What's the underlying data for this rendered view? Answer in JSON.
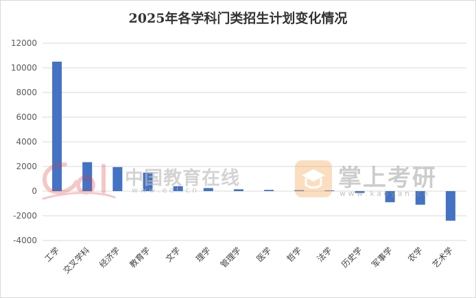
{
  "chart_data": {
    "type": "bar",
    "title": "2025年各学科门类招生计划变化情况",
    "categories": [
      "工学",
      "交叉学科",
      "经济学",
      "教育学",
      "文学",
      "理学",
      "管理学",
      "医学",
      "哲学",
      "法学",
      "历史学",
      "军事学",
      "农学",
      "艺术学"
    ],
    "values": [
      10500,
      2350,
      1950,
      1500,
      400,
      250,
      150,
      100,
      80,
      60,
      -150,
      -900,
      -1100,
      -2400
    ],
    "ylim": [
      -4000,
      12000
    ],
    "yticks": [
      -4000,
      -2000,
      0,
      2000,
      4000,
      6000,
      8000,
      10000,
      12000
    ],
    "xlabel": "",
    "ylabel": "",
    "grid": true,
    "legend": false,
    "bar_color": "#4472c4"
  },
  "watermarks": {
    "left_name": "中国教育在线",
    "left_url": "w w w . e o l . c n",
    "right_name": "掌上考研",
    "right_url": "w w w . k a o y a n . c n",
    "colors": {
      "left_red": "#e23a3a",
      "left_text": "#bbbbbb",
      "right_orange": "#f4a24b",
      "right_text": "#9a9a9a"
    }
  }
}
